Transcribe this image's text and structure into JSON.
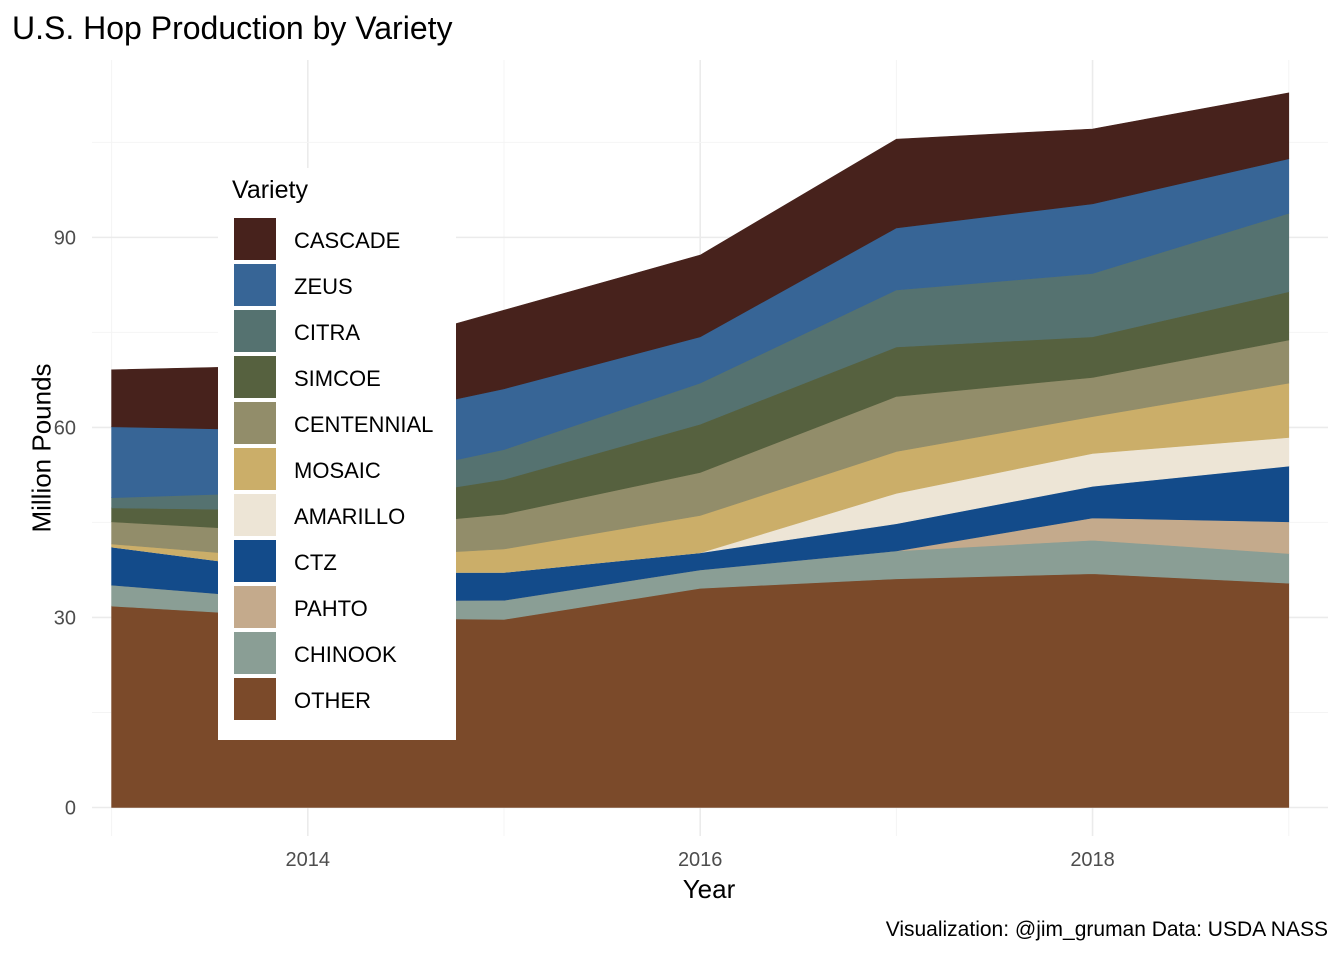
{
  "title": "U.S. Hop Production by Variety",
  "caption": "Visualization: @jim_gruman Data: USDA NASS",
  "chart_data": {
    "type": "area",
    "stacked": true,
    "title": "U.S. Hop Production by Variety",
    "xlabel": "Year",
    "ylabel": "Million Pounds",
    "x": [
      2013,
      2014,
      2015,
      2016,
      2017,
      2018,
      2019
    ],
    "xlim": [
      2012.9,
      2019.2
    ],
    "ylim": [
      -4.5,
      118
    ],
    "xticks": [
      2014,
      2016,
      2018
    ],
    "yticks": [
      0,
      30,
      60,
      90
    ],
    "grid": true,
    "legend_title": "Variety",
    "legend_position": "inside-left",
    "series": [
      {
        "name": "OTHER",
        "color": "#7B4A2A",
        "values": [
          31.8,
          30.0,
          29.7,
          34.6,
          36.1,
          36.9,
          35.4
        ]
      },
      {
        "name": "CHINOOK",
        "color": "#8A9E95",
        "values": [
          3.3,
          2.6,
          3.0,
          2.9,
          4.4,
          5.3,
          4.7
        ]
      },
      {
        "name": "PAHTO",
        "color": "#C4AA8C",
        "values": [
          0,
          0,
          0,
          0,
          0,
          3.5,
          5.0
        ]
      },
      {
        "name": "CTZ",
        "color": "#134B8A",
        "values": [
          6.0,
          4.5,
          4.4,
          2.7,
          4.3,
          5.0,
          8.8
        ]
      },
      {
        "name": "AMARILLO",
        "color": "#EDE5D6",
        "values": [
          0,
          0,
          0,
          0,
          4.8,
          5.2,
          4.5
        ]
      },
      {
        "name": "MOSAIC",
        "color": "#CBAE69",
        "values": [
          0.5,
          2.0,
          3.7,
          5.9,
          6.6,
          5.8,
          8.6
        ]
      },
      {
        "name": "CENTENNIAL",
        "color": "#928D6A",
        "values": [
          3.5,
          4.3,
          5.5,
          6.8,
          8.7,
          6.2,
          6.8
        ]
      },
      {
        "name": "SIMCOE",
        "color": "#56613F",
        "values": [
          2.2,
          3.5,
          5.5,
          7.6,
          7.8,
          6.4,
          7.6
        ]
      },
      {
        "name": "CITRA",
        "color": "#557270",
        "values": [
          1.6,
          3.0,
          4.7,
          6.5,
          9.0,
          10.0,
          12.4
        ]
      },
      {
        "name": "ZEUS",
        "color": "#376596",
        "values": [
          11.2,
          9.6,
          9.6,
          7.3,
          9.8,
          11.0,
          8.6
        ]
      },
      {
        "name": "CASCADE",
        "color": "#47221C",
        "values": [
          9.0,
          10.3,
          12.4,
          12.9,
          14.0,
          11.8,
          10.4
        ]
      }
    ]
  }
}
